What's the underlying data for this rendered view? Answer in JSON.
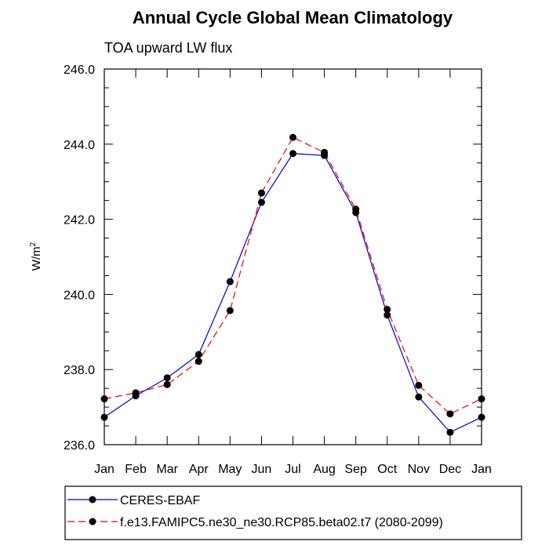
{
  "chart_data": {
    "type": "line",
    "title": "Annual Cycle Global Mean Climatology",
    "subtitle": "TOA upward LW flux",
    "ylabel": "W/m",
    "ylabel_superscript": "2",
    "xlabel": "",
    "categories": [
      "Jan",
      "Feb",
      "Mar",
      "Apr",
      "May",
      "Jun",
      "Jul",
      "Aug",
      "Sep",
      "Oct",
      "Nov",
      "Dec",
      "Jan"
    ],
    "ylim": [
      236.0,
      246.0
    ],
    "yticks": [
      "236.0",
      "238.0",
      "240.0",
      "242.0",
      "244.0",
      "246.0"
    ],
    "series": [
      {
        "name": "CERES-EBAF",
        "color": "#0000cc",
        "dash": "solid",
        "values": [
          236.73,
          237.3,
          237.78,
          238.4,
          240.34,
          242.45,
          243.75,
          243.7,
          242.18,
          239.45,
          237.27,
          236.33,
          236.73
        ]
      },
      {
        "name": "f.e13.FAMIPC5.ne30_ne30.RCP85.beta02.t7 (2080-2099)",
        "color": "#ee0000",
        "dash": "dashed",
        "values": [
          237.22,
          237.38,
          237.6,
          238.22,
          239.57,
          242.7,
          244.18,
          243.78,
          242.27,
          239.6,
          237.58,
          236.82,
          237.22
        ]
      }
    ]
  }
}
